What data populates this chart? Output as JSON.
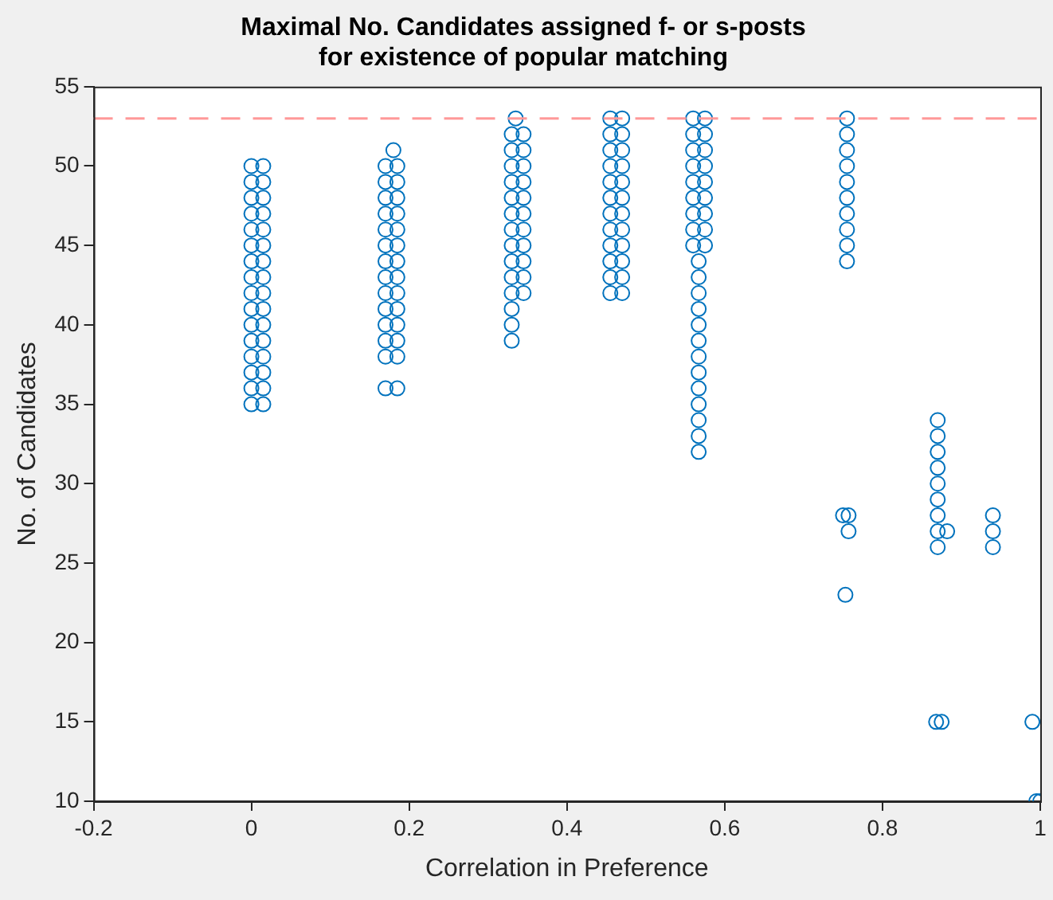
{
  "chart_data": {
    "type": "scatter",
    "title": "Maximal No. Candidates assigned f- or s-posts\nfor existence of popular matching",
    "xlabel": "Correlation in Preference",
    "ylabel": "No. of Candidates",
    "xlim": [
      -0.2,
      1
    ],
    "xticks": [
      -0.2,
      0,
      0.2,
      0.4,
      0.6,
      0.8,
      1
    ],
    "ylim": [
      10,
      55
    ],
    "yticks": [
      10,
      15,
      20,
      25,
      30,
      35,
      40,
      45,
      50,
      55
    ],
    "grid": false,
    "legend": false,
    "marker": "circle",
    "ref_lines": [
      {
        "axis": "y",
        "value": 53,
        "color": "#ff9999",
        "line_style": "dashed"
      }
    ],
    "series": [
      {
        "color": "#0072bd",
        "x": [
          0,
          0,
          0,
          0,
          0,
          0,
          0,
          0,
          0,
          0,
          0,
          0,
          0,
          0,
          0,
          0
        ],
        "values": [
          35,
          36,
          37,
          38,
          39,
          40,
          41,
          42,
          43,
          44,
          45,
          46,
          47,
          48,
          49,
          50
        ]
      },
      {
        "color": "#0072bd",
        "x": [
          0.015,
          0.015,
          0.015,
          0.015,
          0.015,
          0.015,
          0.015,
          0.015,
          0.015,
          0.015,
          0.015,
          0.015,
          0.015,
          0.015,
          0.015,
          0.015
        ],
        "values": [
          35,
          36,
          37,
          38,
          39,
          40,
          41,
          42,
          43,
          44,
          45,
          46,
          47,
          48,
          49,
          50
        ]
      },
      {
        "color": "#0072bd",
        "x": [
          0.17,
          0.17,
          0.17,
          0.17,
          0.17,
          0.17,
          0.17,
          0.17,
          0.17,
          0.17,
          0.17,
          0.17,
          0.17,
          0.17,
          0.18
        ],
        "values": [
          36,
          38,
          39,
          40,
          41,
          42,
          43,
          44,
          45,
          46,
          47,
          48,
          49,
          50,
          51
        ]
      },
      {
        "color": "#0072bd",
        "x": [
          0.185,
          0.185,
          0.185,
          0.185,
          0.185,
          0.185,
          0.185,
          0.185,
          0.185,
          0.185,
          0.185,
          0.185,
          0.185,
          0.185
        ],
        "values": [
          36,
          38,
          39,
          40,
          41,
          42,
          43,
          44,
          45,
          46,
          47,
          48,
          49,
          50
        ]
      },
      {
        "color": "#0072bd",
        "x": [
          0.33,
          0.33,
          0.33,
          0.33,
          0.33,
          0.33,
          0.33,
          0.33,
          0.33,
          0.33,
          0.33,
          0.33,
          0.33,
          0.33,
          0.335
        ],
        "values": [
          39,
          40,
          41,
          42,
          43,
          44,
          45,
          46,
          47,
          48,
          49,
          50,
          51,
          52,
          53
        ]
      },
      {
        "color": "#0072bd",
        "x": [
          0.345,
          0.345,
          0.345,
          0.345,
          0.345,
          0.345,
          0.345,
          0.345,
          0.345,
          0.345,
          0.345
        ],
        "values": [
          42,
          43,
          44,
          45,
          46,
          47,
          48,
          49,
          50,
          51,
          52
        ]
      },
      {
        "color": "#0072bd",
        "x": [
          0.455,
          0.455,
          0.455,
          0.455,
          0.455,
          0.455,
          0.455,
          0.455,
          0.455,
          0.455,
          0.455,
          0.455
        ],
        "values": [
          42,
          43,
          44,
          45,
          46,
          47,
          48,
          49,
          50,
          51,
          52,
          53
        ]
      },
      {
        "color": "#0072bd",
        "x": [
          0.47,
          0.47,
          0.47,
          0.47,
          0.47,
          0.47,
          0.47,
          0.47,
          0.47,
          0.47,
          0.47,
          0.47
        ],
        "values": [
          42,
          43,
          44,
          45,
          46,
          47,
          48,
          49,
          50,
          51,
          52,
          53
        ]
      },
      {
        "color": "#0072bd",
        "x": [
          0.567,
          0.567,
          0.567,
          0.567,
          0.567,
          0.567,
          0.567,
          0.567,
          0.567,
          0.567,
          0.567,
          0.567,
          0.567
        ],
        "values": [
          32,
          33,
          34,
          35,
          36,
          37,
          38,
          39,
          40,
          41,
          42,
          43,
          44
        ]
      },
      {
        "color": "#0072bd",
        "x": [
          0.56,
          0.56,
          0.56,
          0.56,
          0.56,
          0.56,
          0.56,
          0.56,
          0.56
        ],
        "values": [
          45,
          46,
          47,
          48,
          49,
          50,
          51,
          52,
          53
        ]
      },
      {
        "color": "#0072bd",
        "x": [
          0.575,
          0.575,
          0.575,
          0.575,
          0.575,
          0.575,
          0.575,
          0.575,
          0.575
        ],
        "values": [
          45,
          46,
          47,
          48,
          49,
          50,
          51,
          52,
          53
        ]
      },
      {
        "color": "#0072bd",
        "x": [
          0.755,
          0.755,
          0.755,
          0.755,
          0.755,
          0.755,
          0.755,
          0.755,
          0.755,
          0.755,
          0.75,
          0.757,
          0.757,
          0.753
        ],
        "values": [
          44,
          45,
          46,
          47,
          48,
          49,
          50,
          51,
          52,
          53,
          28,
          28,
          27,
          23
        ]
      },
      {
        "color": "#0072bd",
        "x": [
          0.87,
          0.87,
          0.87,
          0.87,
          0.87,
          0.87,
          0.87,
          0.87,
          0.87,
          0.882,
          0.868,
          0.875
        ],
        "values": [
          26,
          27,
          28,
          29,
          30,
          31,
          32,
          33,
          34,
          27,
          15,
          15
        ]
      },
      {
        "color": "#0072bd",
        "x": [
          0.94,
          0.94,
          0.94,
          0.99,
          0.995,
          1
        ],
        "values": [
          26,
          27,
          28,
          15,
          10,
          10
        ]
      }
    ]
  }
}
